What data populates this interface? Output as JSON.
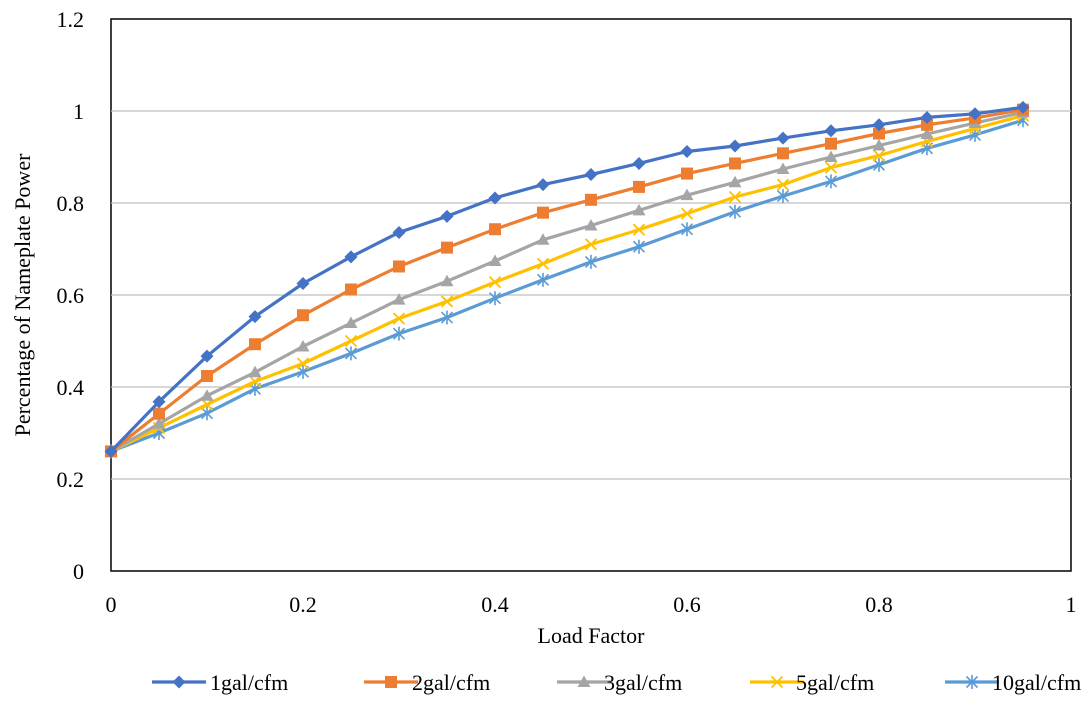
{
  "chart_data": {
    "type": "line",
    "xlabel": "Load Factor",
    "ylabel": "Percentage of Nameplate Power",
    "xlim": [
      0,
      1
    ],
    "ylim": [
      0,
      1.2
    ],
    "x_ticks": [
      "0",
      "0.2",
      "0.4",
      "0.6",
      "0.8",
      "1"
    ],
    "y_ticks": [
      "0",
      "0.2",
      "0.4",
      "0.6",
      "0.8",
      "1",
      "1.2"
    ],
    "grid": "horizontal",
    "legend_position": "bottom",
    "x": [
      0,
      0.05,
      0.1,
      0.15,
      0.2,
      0.25,
      0.3,
      0.35,
      0.4,
      0.45,
      0.5,
      0.55,
      0.6,
      0.65,
      0.7,
      0.75,
      0.8,
      0.85,
      0.9,
      0.95
    ],
    "series": [
      {
        "name": "1gal/cfm",
        "color": "#4472C4",
        "marker": "diamond",
        "values": [
          0.26,
          0.368,
          0.467,
          0.553,
          0.625,
          0.683,
          0.736,
          0.771,
          0.811,
          0.84,
          0.862,
          0.886,
          0.912,
          0.924,
          0.941,
          0.957,
          0.97,
          0.986,
          0.994,
          1.008
        ]
      },
      {
        "name": "2gal/cfm",
        "color": "#ED7D31",
        "marker": "square",
        "values": [
          0.26,
          0.342,
          0.424,
          0.493,
          0.556,
          0.612,
          0.662,
          0.703,
          0.743,
          0.779,
          0.807,
          0.835,
          0.864,
          0.886,
          0.908,
          0.929,
          0.951,
          0.97,
          0.985,
          1.003
        ]
      },
      {
        "name": "3gal/cfm",
        "color": "#A5A5A5",
        "marker": "triangle",
        "values": [
          0.26,
          0.32,
          0.381,
          0.432,
          0.488,
          0.539,
          0.59,
          0.63,
          0.674,
          0.72,
          0.751,
          0.784,
          0.817,
          0.845,
          0.874,
          0.9,
          0.925,
          0.95,
          0.974,
          0.997
        ]
      },
      {
        "name": "5gal/cfm",
        "color": "#FFC000",
        "marker": "x",
        "values": [
          0.26,
          0.311,
          0.362,
          0.412,
          0.451,
          0.5,
          0.549,
          0.586,
          0.628,
          0.668,
          0.71,
          0.742,
          0.777,
          0.813,
          0.84,
          0.877,
          0.903,
          0.934,
          0.962,
          0.99
        ]
      },
      {
        "name": "10gal/cfm",
        "color": "#5B9BD5",
        "marker": "asterisk",
        "values": [
          0.26,
          0.3,
          0.343,
          0.396,
          0.433,
          0.473,
          0.516,
          0.551,
          0.593,
          0.633,
          0.672,
          0.705,
          0.743,
          0.781,
          0.815,
          0.847,
          0.883,
          0.919,
          0.948,
          0.98
        ]
      }
    ]
  }
}
